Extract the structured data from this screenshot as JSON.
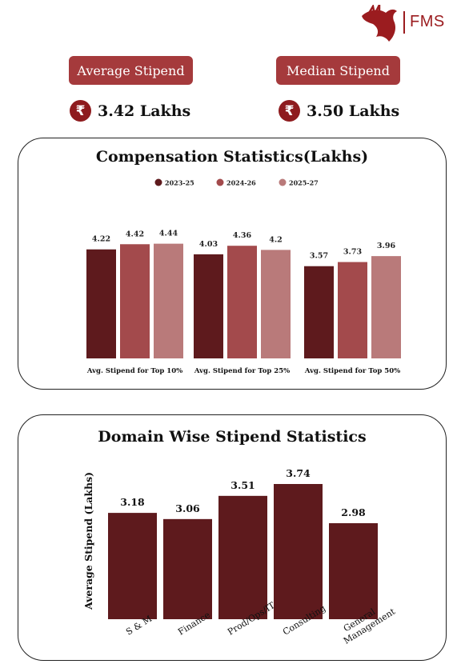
{
  "brand": {
    "name": "FMS"
  },
  "kpis": [
    {
      "label": "Average Stipend",
      "value": "3.42 Lakhs",
      "symbol": "₹"
    },
    {
      "label": "Median Stipend",
      "value": "3.50 Lakhs",
      "symbol": "₹"
    }
  ],
  "chart_data": [
    {
      "type": "bar",
      "title": "Compensation Statistics(Lakhs)",
      "categories": [
        "Avg. Stipend for Top 10%",
        "Avg. Stipend for Top 25%",
        "Avg. Stipend for Top 50%"
      ],
      "series": [
        {
          "name": "2023-25",
          "values": [
            4.22,
            4.03,
            3.57
          ],
          "color": "#5e1a1d"
        },
        {
          "name": "2024-26",
          "values": [
            4.42,
            4.36,
            3.73
          ],
          "color": "#a34a4c"
        },
        {
          "name": "2025-27",
          "values": [
            4.44,
            4.2,
            3.96
          ],
          "color": "#b97a7a"
        }
      ],
      "data_labels": [
        [
          "4.22",
          "4.42",
          "4.44"
        ],
        [
          "4.03",
          "4.36",
          "4.2"
        ],
        [
          "3.57",
          "3.73",
          "3.96"
        ]
      ],
      "ylim": [
        0,
        4.8
      ],
      "legend": "top",
      "grid": false
    },
    {
      "type": "bar",
      "title": "Domain Wise Stipend Statistics",
      "categories": [
        "S & M",
        "Finance",
        "Prod/Ops/IT",
        "Consulting",
        "General Management"
      ],
      "values": [
        3.18,
        3.06,
        3.51,
        3.74,
        2.98
      ],
      "data_labels": [
        "3.18",
        "3.06",
        "3.51",
        "3.74",
        "2.98"
      ],
      "ylabel": "Average Stipend (Lakhs)",
      "color": "#5e1a1d",
      "ylim": [
        0,
        4.0
      ],
      "grid": false
    }
  ]
}
